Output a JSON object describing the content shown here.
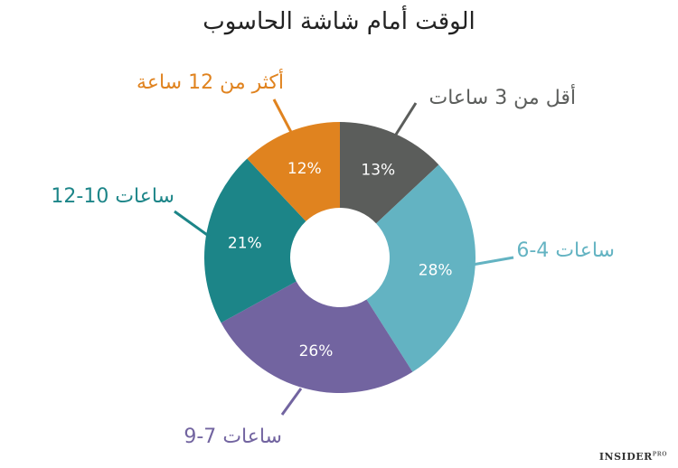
{
  "chart_data": {
    "type": "pie",
    "title": "الوقت أمام شاشة الحاسوب",
    "categories": [
      "أقل من 3 ساعات",
      "6-4 ساعات",
      "9-7 ساعات",
      "12-10 ساعات",
      "أكثر من 12 ساعة"
    ],
    "values": [
      13,
      28,
      26,
      21,
      12
    ],
    "value_labels": [
      "13%",
      "28%",
      "26%",
      "21%",
      "12%"
    ],
    "unit": "%",
    "donut": true,
    "colors": [
      "#5b5d5b",
      "#63b3c2",
      "#7264a0",
      "#1c8588",
      "#e0831f"
    ],
    "legend": "none"
  },
  "brand": {
    "name": "INSIDER",
    "sup": "PRO"
  }
}
